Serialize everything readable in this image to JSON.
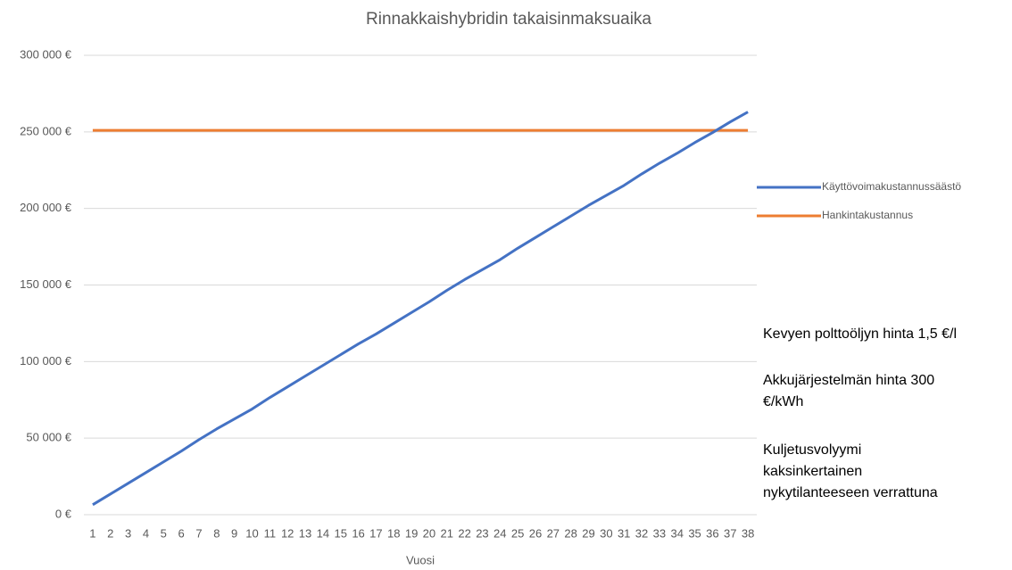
{
  "chart_data": {
    "type": "line",
    "title": "Rinnakkaishybridin takaisinmaksuaika",
    "x_label": "Vuosi",
    "categories": [
      "1",
      "2",
      "3",
      "4",
      "5",
      "6",
      "7",
      "8",
      "9",
      "10",
      "11",
      "12",
      "13",
      "14",
      "15",
      "16",
      "17",
      "18",
      "19",
      "20",
      "21",
      "22",
      "23",
      "24",
      "25",
      "26",
      "27",
      "28",
      "29",
      "30",
      "31",
      "32",
      "33",
      "34",
      "35",
      "36",
      "37",
      "38"
    ],
    "series": [
      {
        "name": "Käyttövoimakustannussäästö",
        "color": "#4472c4",
        "values": [
          6500,
          13500,
          20500,
          27500,
          34500,
          41500,
          49000,
          56000,
          62500,
          69000,
          76500,
          83500,
          90500,
          97500,
          104500,
          111500,
          118000,
          125000,
          132000,
          139000,
          146500,
          153500,
          160000,
          166500,
          174000,
          181000,
          188000,
          195000,
          202000,
          208500,
          215000,
          222500,
          229500,
          236000,
          243000,
          249500,
          256500,
          263000
        ]
      },
      {
        "name": "Hankintakustannus",
        "color": "#ed7d31",
        "values": [
          251000,
          251000,
          251000,
          251000,
          251000,
          251000,
          251000,
          251000,
          251000,
          251000,
          251000,
          251000,
          251000,
          251000,
          251000,
          251000,
          251000,
          251000,
          251000,
          251000,
          251000,
          251000,
          251000,
          251000,
          251000,
          251000,
          251000,
          251000,
          251000,
          251000,
          251000,
          251000,
          251000,
          251000,
          251000,
          251000,
          251000,
          251000
        ]
      }
    ],
    "ylim": [
      0,
      300000
    ],
    "yticks": [
      {
        "value": 0,
        "label": "0 €"
      },
      {
        "value": 50000,
        "label": "50 000 €"
      },
      {
        "value": 100000,
        "label": "100 000 €"
      },
      {
        "value": 150000,
        "label": "150 000 €"
      },
      {
        "value": 200000,
        "label": "200 000 €"
      },
      {
        "value": 250000,
        "label": "250 000 €"
      },
      {
        "value": 300000,
        "label": "300 000 €"
      }
    ],
    "grid": true,
    "legend": "right",
    "annotations": [
      [
        "Kevyen polttoöljyn hinta 1,5 €/l"
      ],
      [
        "Akkujärjestelmän hinta 300",
        "€/kWh"
      ],
      [
        "Kuljetusvolyymi",
        "kaksinkertainen",
        "nykytilanteeseen verrattuna"
      ]
    ]
  }
}
